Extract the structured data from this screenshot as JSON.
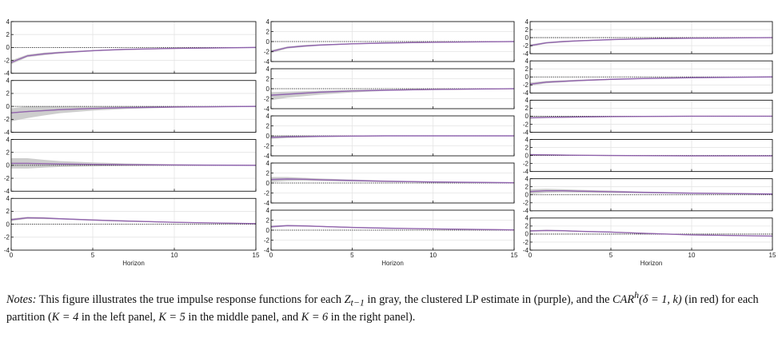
{
  "chart_data": [
    {
      "type": "line",
      "panel": "left",
      "K": 4,
      "xlabel": "Horizon",
      "xlim": [
        0,
        15
      ],
      "xticks": [
        "0",
        "5",
        "10",
        "15"
      ],
      "ylim": [
        -4,
        4
      ],
      "yticks": [
        "4",
        "2",
        "0",
        "-2",
        "-4"
      ],
      "grid": true,
      "subplots": [
        {
          "x": [
            0,
            1,
            2,
            3,
            5,
            7,
            10,
            15
          ],
          "true_irf": [
            -2.3,
            -1.3,
            -1.0,
            -0.8,
            -0.5,
            -0.3,
            -0.15,
            0.0
          ],
          "band_halfwidth": [
            0.3,
            0.2,
            0.2,
            0.15,
            0.1,
            0.1,
            0.05,
            0.05
          ],
          "clustered_lp": [
            -2.3,
            -1.3,
            -1.0,
            -0.8,
            -0.5,
            -0.3,
            -0.15,
            0.0
          ],
          "car": [
            -2.3,
            -1.3,
            -1.0,
            -0.8,
            -0.5,
            -0.3,
            -0.15,
            0.0
          ]
        },
        {
          "x": [
            0,
            1,
            2,
            3,
            5,
            7,
            10,
            15
          ],
          "true_irf": [
            -1.3,
            -0.9,
            -0.7,
            -0.55,
            -0.35,
            -0.2,
            -0.1,
            0.0
          ],
          "band_halfwidth": [
            1.0,
            0.9,
            0.7,
            0.5,
            0.3,
            0.2,
            0.1,
            0.05
          ],
          "clustered_lp": [
            -1.0,
            -0.8,
            -0.65,
            -0.5,
            -0.32,
            -0.2,
            -0.1,
            0.0
          ],
          "car": [
            -1.0,
            -0.8,
            -0.65,
            -0.5,
            -0.32,
            -0.2,
            -0.1,
            0.0
          ]
        },
        {
          "x": [
            0,
            1,
            2,
            3,
            5,
            7,
            10,
            15
          ],
          "true_irf": [
            0.3,
            0.3,
            0.25,
            0.2,
            0.15,
            0.1,
            0.05,
            0.0
          ],
          "band_halfwidth": [
            0.8,
            0.8,
            0.6,
            0.45,
            0.3,
            0.2,
            0.1,
            0.05
          ],
          "clustered_lp": [
            0.3,
            0.3,
            0.25,
            0.2,
            0.15,
            0.1,
            0.05,
            0.0
          ],
          "car": [
            0.3,
            0.3,
            0.25,
            0.2,
            0.15,
            0.1,
            0.05,
            0.0
          ]
        },
        {
          "x": [
            0,
            1,
            2,
            3,
            5,
            7,
            10,
            15
          ],
          "true_irf": [
            0.7,
            1.0,
            0.95,
            0.85,
            0.65,
            0.5,
            0.3,
            0.1
          ],
          "band_halfwidth": [
            0.2,
            0.15,
            0.15,
            0.1,
            0.1,
            0.1,
            0.05,
            0.05
          ],
          "clustered_lp": [
            0.7,
            1.0,
            0.95,
            0.85,
            0.65,
            0.5,
            0.3,
            0.1
          ],
          "car": [
            0.7,
            1.0,
            0.95,
            0.85,
            0.65,
            0.5,
            0.3,
            0.1
          ]
        }
      ]
    },
    {
      "type": "line",
      "panel": "middle",
      "K": 5,
      "xlabel": "Horizon",
      "xlim": [
        0,
        15
      ],
      "xticks": [
        "0",
        "5",
        "10",
        "15"
      ],
      "ylim": [
        -4,
        4
      ],
      "yticks": [
        "4",
        "2",
        "0",
        "-2",
        "-4"
      ],
      "grid": true,
      "subplots": [
        {
          "x": [
            0,
            1,
            2,
            3,
            5,
            7,
            10,
            15
          ],
          "true_irf": [
            -2.0,
            -1.2,
            -0.9,
            -0.7,
            -0.45,
            -0.3,
            -0.15,
            0.0
          ],
          "band_halfwidth": [
            0.3,
            0.2,
            0.2,
            0.15,
            0.1,
            0.1,
            0.05,
            0.05
          ],
          "clustered_lp": [
            -2.0,
            -1.2,
            -0.9,
            -0.7,
            -0.45,
            -0.3,
            -0.15,
            0.0
          ],
          "car": [
            -2.0,
            -1.2,
            -0.9,
            -0.7,
            -0.45,
            -0.3,
            -0.15,
            0.0
          ]
        },
        {
          "x": [
            0,
            1,
            2,
            3,
            5,
            7,
            10,
            15
          ],
          "true_irf": [
            -1.5,
            -1.2,
            -1.0,
            -0.8,
            -0.5,
            -0.3,
            -0.15,
            0.0
          ],
          "band_halfwidth": [
            0.8,
            0.6,
            0.5,
            0.4,
            0.25,
            0.15,
            0.1,
            0.05
          ],
          "clustered_lp": [
            -1.3,
            -1.1,
            -0.9,
            -0.7,
            -0.45,
            -0.3,
            -0.15,
            0.0
          ],
          "car": [
            -1.3,
            -1.1,
            -0.9,
            -0.7,
            -0.45,
            -0.3,
            -0.15,
            0.0
          ]
        },
        {
          "x": [
            0,
            1,
            2,
            3,
            5,
            7,
            10,
            15
          ],
          "true_irf": [
            -0.3,
            -0.2,
            -0.15,
            -0.1,
            -0.05,
            0.0,
            0.0,
            0.0
          ],
          "band_halfwidth": [
            0.3,
            0.25,
            0.2,
            0.15,
            0.1,
            0.05,
            0.05,
            0.05
          ],
          "clustered_lp": [
            -0.3,
            -0.2,
            -0.15,
            -0.1,
            -0.05,
            0.0,
            0.0,
            0.0
          ],
          "car": [
            -0.3,
            -0.2,
            -0.15,
            -0.1,
            -0.05,
            0.0,
            0.0,
            0.0
          ]
        },
        {
          "x": [
            0,
            1,
            2,
            3,
            5,
            7,
            10,
            15
          ],
          "true_irf": [
            0.7,
            0.8,
            0.75,
            0.65,
            0.5,
            0.35,
            0.2,
            0.05
          ],
          "band_halfwidth": [
            0.5,
            0.4,
            0.3,
            0.25,
            0.2,
            0.15,
            0.1,
            0.05
          ],
          "clustered_lp": [
            0.7,
            0.8,
            0.75,
            0.65,
            0.5,
            0.35,
            0.2,
            0.05
          ],
          "car": [
            0.7,
            0.8,
            0.75,
            0.65,
            0.5,
            0.35,
            0.2,
            0.05
          ]
        },
        {
          "x": [
            0,
            1,
            2,
            3,
            5,
            7,
            10,
            15
          ],
          "true_irf": [
            0.7,
            0.9,
            0.85,
            0.75,
            0.55,
            0.4,
            0.25,
            0.05
          ],
          "band_halfwidth": [
            0.2,
            0.15,
            0.15,
            0.1,
            0.1,
            0.1,
            0.05,
            0.05
          ],
          "clustered_lp": [
            0.7,
            0.9,
            0.85,
            0.75,
            0.55,
            0.4,
            0.25,
            0.05
          ],
          "car": [
            0.7,
            0.9,
            0.85,
            0.75,
            0.55,
            0.4,
            0.25,
            0.05
          ]
        }
      ]
    },
    {
      "type": "line",
      "panel": "right",
      "K": 6,
      "xlabel": "Horizon",
      "xlim": [
        0,
        15
      ],
      "xticks": [
        "0",
        "5",
        "10",
        "15"
      ],
      "ylim": [
        -4,
        4
      ],
      "yticks": [
        "4",
        "2",
        "0",
        "-2",
        "-4"
      ],
      "grid": true,
      "subplots": [
        {
          "x": [
            0,
            1,
            2,
            3,
            5,
            7,
            10,
            15
          ],
          "true_irf": [
            -2.0,
            -1.3,
            -1.0,
            -0.8,
            -0.5,
            -0.3,
            -0.15,
            0.0
          ],
          "band_halfwidth": [
            0.3,
            0.2,
            0.2,
            0.15,
            0.1,
            0.1,
            0.05,
            0.05
          ],
          "clustered_lp": [
            -2.0,
            -1.3,
            -1.0,
            -0.8,
            -0.5,
            -0.3,
            -0.15,
            0.0
          ],
          "car": [
            -2.0,
            -1.3,
            -1.0,
            -0.8,
            -0.5,
            -0.3,
            -0.15,
            0.0
          ]
        },
        {
          "x": [
            0,
            1,
            2,
            3,
            5,
            7,
            10,
            15
          ],
          "true_irf": [
            -1.8,
            -1.3,
            -1.1,
            -0.9,
            -0.6,
            -0.4,
            -0.2,
            0.0
          ],
          "band_halfwidth": [
            0.4,
            0.3,
            0.25,
            0.2,
            0.15,
            0.1,
            0.05,
            0.05
          ],
          "clustered_lp": [
            -1.8,
            -1.3,
            -1.1,
            -0.9,
            -0.6,
            -0.4,
            -0.2,
            0.0
          ],
          "car": [
            -1.8,
            -1.3,
            -1.1,
            -0.9,
            -0.6,
            -0.4,
            -0.2,
            0.0
          ]
        },
        {
          "x": [
            0,
            1,
            2,
            3,
            5,
            7,
            10,
            15
          ],
          "true_irf": [
            -0.4,
            -0.3,
            -0.25,
            -0.2,
            -0.1,
            -0.05,
            0.0,
            0.0
          ],
          "band_halfwidth": [
            0.2,
            0.15,
            0.15,
            0.1,
            0.1,
            0.05,
            0.05,
            0.05
          ],
          "clustered_lp": [
            -0.4,
            -0.3,
            -0.25,
            -0.2,
            -0.1,
            -0.05,
            0.0,
            0.0
          ],
          "car": [
            -0.4,
            -0.3,
            -0.25,
            -0.2,
            -0.1,
            -0.05,
            0.0,
            0.0
          ]
        },
        {
          "x": [
            0,
            1,
            2,
            3,
            5,
            7,
            10,
            15
          ],
          "true_irf": [
            0.2,
            0.15,
            0.1,
            0.05,
            0.0,
            -0.05,
            -0.1,
            -0.1
          ],
          "band_halfwidth": [
            0.2,
            0.15,
            0.15,
            0.1,
            0.1,
            0.05,
            0.05,
            0.05
          ],
          "clustered_lp": [
            0.2,
            0.15,
            0.1,
            0.05,
            0.0,
            -0.05,
            -0.1,
            -0.1
          ],
          "car": [
            0.2,
            0.15,
            0.1,
            0.05,
            0.0,
            -0.05,
            -0.1,
            -0.1
          ]
        },
        {
          "x": [
            0,
            1,
            2,
            3,
            5,
            7,
            10,
            15
          ],
          "true_irf": [
            0.8,
            1.0,
            1.0,
            0.9,
            0.75,
            0.6,
            0.4,
            0.2
          ],
          "band_halfwidth": [
            0.6,
            0.5,
            0.4,
            0.35,
            0.3,
            0.2,
            0.15,
            0.1
          ],
          "clustered_lp": [
            0.8,
            1.0,
            1.0,
            0.9,
            0.75,
            0.6,
            0.4,
            0.2
          ],
          "car": [
            0.8,
            1.0,
            1.0,
            0.9,
            0.75,
            0.6,
            0.4,
            0.2
          ]
        },
        {
          "x": [
            0,
            1,
            2,
            3,
            5,
            7,
            10,
            15
          ],
          "true_irf": [
            0.8,
            0.9,
            0.85,
            0.7,
            0.5,
            0.2,
            -0.2,
            -0.5
          ],
          "band_halfwidth": [
            0.2,
            0.15,
            0.15,
            0.1,
            0.1,
            0.1,
            0.05,
            0.05
          ],
          "clustered_lp": [
            0.8,
            0.9,
            0.85,
            0.7,
            0.5,
            0.2,
            -0.2,
            -0.5
          ],
          "car": [
            0.8,
            0.9,
            0.85,
            0.7,
            0.5,
            0.2,
            -0.2,
            -0.5
          ]
        }
      ]
    }
  ],
  "colors": {
    "true_irf_band": "#c4c4c4",
    "clustered_lp": "#8a63b4",
    "car": "#d33a3a",
    "zero_line": "#000000",
    "grid": "#e4e4e4",
    "axes": "#000000"
  },
  "notes": {
    "label": "Notes:",
    "part1": " This figure illustrates the true impulse response functions for each ",
    "z_var": "Z",
    "z_sub": "t−1",
    "part2": " in gray, the clustered LP estimate in (purple), and the ",
    "car_math": "CAR",
    "car_sup": "h",
    "car_args": "(δ = 1, k)",
    "part3": " (in red) for each partition (",
    "k_left": "K = 4",
    "part4": " in the left panel, ",
    "k_middle": "K = 5",
    "part5": " in the middle panel, and ",
    "k_right": "K = 6",
    "part6": " in the right panel)."
  }
}
